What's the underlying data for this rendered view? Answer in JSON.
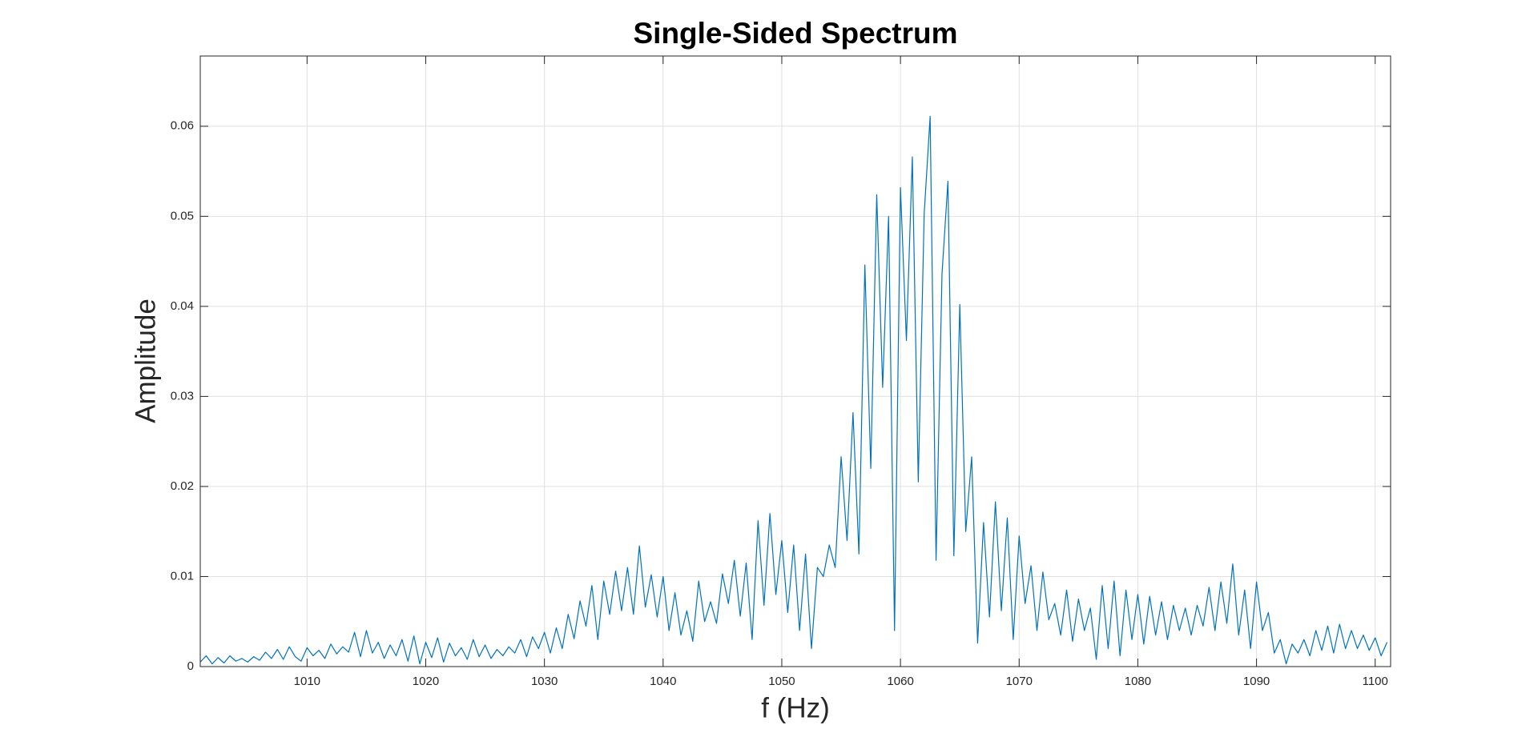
{
  "chart_data": {
    "type": "line",
    "title": "Single-Sided Spectrum",
    "x_label": "f (Hz)",
    "y_label": "Amplitude",
    "color": "#0072bd",
    "grid": true,
    "xlim": [
      1001,
      1101.3
    ],
    "ylim": [
      0,
      0.0678
    ],
    "xticks": [
      1010,
      1020,
      1030,
      1040,
      1050,
      1060,
      1070,
      1080,
      1090,
      1100
    ],
    "yticks": [
      0,
      0.01,
      0.02,
      0.03,
      0.04,
      0.05,
      0.06
    ],
    "x": [
      1001,
      1001.5,
      1002,
      1002.5,
      1003,
      1003.5,
      1004,
      1004.5,
      1005,
      1005.5,
      1006,
      1006.5,
      1007,
      1007.5,
      1008,
      1008.5,
      1009,
      1009.5,
      1010,
      1010.5,
      1011,
      1011.5,
      1012,
      1012.5,
      1013,
      1013.5,
      1014,
      1014.5,
      1015,
      1015.5,
      1016,
      1016.5,
      1017,
      1017.5,
      1018,
      1018.5,
      1019,
      1019.5,
      1020,
      1020.5,
      1021,
      1021.5,
      1022,
      1022.5,
      1023,
      1023.5,
      1024,
      1024.5,
      1025,
      1025.5,
      1026,
      1026.5,
      1027,
      1027.5,
      1028,
      1028.5,
      1029,
      1029.5,
      1030,
      1030.5,
      1031,
      1031.5,
      1032,
      1032.5,
      1033,
      1033.5,
      1034,
      1034.5,
      1035,
      1035.5,
      1036,
      1036.5,
      1037,
      1037.5,
      1038,
      1038.5,
      1039,
      1039.5,
      1040,
      1040.5,
      1041,
      1041.5,
      1042,
      1042.5,
      1043,
      1043.5,
      1044,
      1044.5,
      1045,
      1045.5,
      1046,
      1046.5,
      1047,
      1047.5,
      1048,
      1048.5,
      1049,
      1049.5,
      1050,
      1050.5,
      1051,
      1051.5,
      1052,
      1052.5,
      1053,
      1053.5,
      1054,
      1054.5,
      1055,
      1055.5,
      1056,
      1056.5,
      1057,
      1057.5,
      1058,
      1058.5,
      1059,
      1059.5,
      1060,
      1060.5,
      1061,
      1061.5,
      1062,
      1062.5,
      1063,
      1063.5,
      1064,
      1064.5,
      1065,
      1065.5,
      1066,
      1066.5,
      1067,
      1067.5,
      1068,
      1068.5,
      1069,
      1069.5,
      1070,
      1070.5,
      1071,
      1071.5,
      1072,
      1072.5,
      1073,
      1073.5,
      1074,
      1074.5,
      1075,
      1075.5,
      1076,
      1076.5,
      1077,
      1077.5,
      1078,
      1078.5,
      1079,
      1079.5,
      1080,
      1080.5,
      1081,
      1081.5,
      1082,
      1082.5,
      1083,
      1083.5,
      1084,
      1084.5,
      1085,
      1085.5,
      1086,
      1086.5,
      1087,
      1087.5,
      1088,
      1088.5,
      1089,
      1089.5,
      1090,
      1090.5,
      1091,
      1091.5,
      1092,
      1092.5,
      1093,
      1093.5,
      1094,
      1094.5,
      1095,
      1095.5,
      1096,
      1096.5,
      1097,
      1097.5,
      1098,
      1098.5,
      1099,
      1099.5,
      1100,
      1100.5,
      1101
    ],
    "values": [
      0.0005,
      0.0012,
      0.0003,
      0.001,
      0.0004,
      0.0012,
      0.0006,
      0.0009,
      0.0005,
      0.0011,
      0.0007,
      0.0016,
      0.0009,
      0.0019,
      0.0008,
      0.0022,
      0.0011,
      0.0006,
      0.0021,
      0.0012,
      0.0018,
      0.0009,
      0.0025,
      0.0014,
      0.0022,
      0.0016,
      0.0038,
      0.0011,
      0.004,
      0.0015,
      0.0027,
      0.0009,
      0.0024,
      0.0012,
      0.003,
      0.0006,
      0.0034,
      0.0003,
      0.0027,
      0.001,
      0.0032,
      0.0005,
      0.0026,
      0.0012,
      0.0021,
      0.0008,
      0.003,
      0.0011,
      0.0024,
      0.0009,
      0.0019,
      0.0012,
      0.0022,
      0.0015,
      0.003,
      0.0011,
      0.0033,
      0.002,
      0.0038,
      0.0015,
      0.0043,
      0.002,
      0.0058,
      0.0031,
      0.0073,
      0.0045,
      0.009,
      0.003,
      0.0095,
      0.0058,
      0.0106,
      0.0062,
      0.011,
      0.0058,
      0.0134,
      0.0066,
      0.0102,
      0.0055,
      0.01,
      0.004,
      0.0082,
      0.0035,
      0.0062,
      0.0028,
      0.0095,
      0.005,
      0.0072,
      0.0048,
      0.0103,
      0.007,
      0.0118,
      0.0056,
      0.0115,
      0.003,
      0.0162,
      0.0068,
      0.017,
      0.008,
      0.014,
      0.006,
      0.0135,
      0.004,
      0.0125,
      0.002,
      0.011,
      0.01,
      0.0135,
      0.011,
      0.0233,
      0.014,
      0.0282,
      0.0125,
      0.0446,
      0.022,
      0.0524,
      0.031,
      0.05,
      0.004,
      0.0532,
      0.0362,
      0.0566,
      0.0205,
      0.0503,
      0.0611,
      0.0118,
      0.0436,
      0.0539,
      0.0123,
      0.0402,
      0.015,
      0.0233,
      0.0026,
      0.016,
      0.0055,
      0.0183,
      0.0062,
      0.0165,
      0.003,
      0.0145,
      0.007,
      0.0112,
      0.004,
      0.0105,
      0.0052,
      0.007,
      0.0035,
      0.0085,
      0.0028,
      0.0075,
      0.004,
      0.0065,
      0.0008,
      0.009,
      0.002,
      0.0095,
      0.0012,
      0.0085,
      0.003,
      0.008,
      0.0025,
      0.0078,
      0.0035,
      0.0072,
      0.003,
      0.0068,
      0.004,
      0.0065,
      0.0035,
      0.0068,
      0.0045,
      0.0088,
      0.004,
      0.0094,
      0.0048,
      0.0114,
      0.0035,
      0.0085,
      0.002,
      0.0094,
      0.004,
      0.006,
      0.0015,
      0.003,
      0.0003,
      0.0025,
      0.0015,
      0.003,
      0.0012,
      0.004,
      0.0018,
      0.0045,
      0.0015,
      0.0047,
      0.002,
      0.004,
      0.002,
      0.0035,
      0.0018,
      0.0032,
      0.0012,
      0.0027
    ]
  }
}
